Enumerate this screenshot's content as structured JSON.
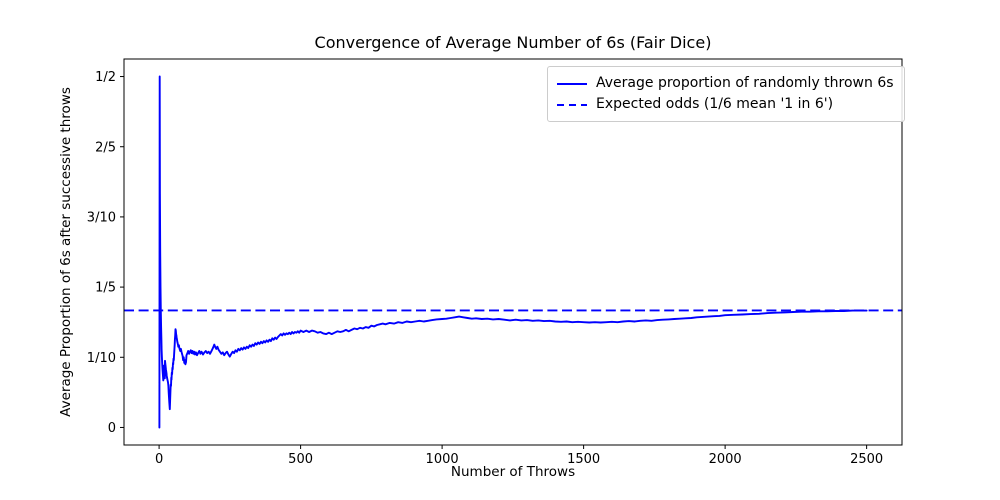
{
  "figure": {
    "background": "#ffffff"
  },
  "chart_data": {
    "type": "line",
    "title": "Convergence of Average Number of 6s (Fair Dice)",
    "xlabel": "Number of Throws",
    "ylabel": "Average Proportion of 6s after successive throws",
    "xlim": [
      -124,
      2625
    ],
    "ylim": [
      -0.025,
      0.525
    ],
    "grid": false,
    "series_color": "#0000ff",
    "axis_color": "#000000",
    "expected_value": 0.166667,
    "xticks": {
      "values": [
        0,
        500,
        1000,
        1500,
        2000,
        2500
      ],
      "labels": [
        "0",
        "500",
        "1000",
        "1500",
        "2000",
        "2500"
      ]
    },
    "yticks": {
      "values": [
        0,
        0.1,
        0.2,
        0.3,
        0.4,
        0.5
      ],
      "labels": [
        "0",
        "1/10",
        "1/5",
        "3/10",
        "2/5",
        "1/2"
      ]
    },
    "legend": {
      "position": "upper right",
      "entries": [
        {
          "label": "Average proportion of randomly thrown 6s",
          "style": "solid"
        },
        {
          "label": "Expected odds (1/6 mean '1 in 6')",
          "style": "dashed"
        }
      ]
    },
    "series": [
      {
        "name": "Average proportion of randomly thrown 6s",
        "points": [
          [
            1,
            0
          ],
          [
            2,
            0.5
          ],
          [
            3,
            0.333
          ],
          [
            4,
            0.25
          ],
          [
            5,
            0.2
          ],
          [
            6,
            0.167
          ],
          [
            7,
            0.143
          ],
          [
            8,
            0.125
          ],
          [
            9,
            0.111
          ],
          [
            10,
            0.1
          ],
          [
            11,
            0.091
          ],
          [
            12,
            0.083
          ],
          [
            13,
            0.077
          ],
          [
            14,
            0.071
          ],
          [
            15,
            0.067
          ],
          [
            16,
            0.088
          ],
          [
            17,
            0.083
          ],
          [
            18,
            0.078
          ],
          [
            19,
            0.074
          ],
          [
            20,
            0.07
          ],
          [
            21,
            0.095
          ],
          [
            22,
            0.091
          ],
          [
            23,
            0.087
          ],
          [
            24,
            0.083
          ],
          [
            25,
            0.08
          ],
          [
            26,
            0.077
          ],
          [
            27,
            0.074
          ],
          [
            28,
            0.071
          ],
          [
            29,
            0.069
          ],
          [
            30,
            0.067
          ],
          [
            31,
            0.065
          ],
          [
            32,
            0.063
          ],
          [
            33,
            0.059
          ],
          [
            34,
            0.05
          ],
          [
            35,
            0.043
          ],
          [
            36,
            0.036
          ],
          [
            37,
            0.03
          ],
          [
            38,
            0.026
          ],
          [
            39,
            0.038
          ],
          [
            40,
            0.05
          ],
          [
            41,
            0.061
          ],
          [
            42,
            0.059
          ],
          [
            43,
            0.071
          ],
          [
            44,
            0.068
          ],
          [
            45,
            0.078
          ],
          [
            46,
            0.076
          ],
          [
            47,
            0.085
          ],
          [
            48,
            0.083
          ],
          [
            49,
            0.092
          ],
          [
            50,
            0.09
          ],
          [
            51,
            0.098
          ],
          [
            52,
            0.096
          ],
          [
            53,
            0.104
          ],
          [
            54,
            0.111
          ],
          [
            55,
            0.118
          ],
          [
            56,
            0.125
          ],
          [
            57,
            0.131
          ],
          [
            58,
            0.14
          ],
          [
            59,
            0.138
          ],
          [
            60,
            0.133
          ],
          [
            61,
            0.131
          ],
          [
            62,
            0.128
          ],
          [
            63,
            0.126
          ],
          [
            64,
            0.123
          ],
          [
            65,
            0.121
          ],
          [
            66,
            0.119
          ],
          [
            67,
            0.117
          ],
          [
            68,
            0.115
          ],
          [
            70,
            0.117
          ],
          [
            71,
            0.114
          ],
          [
            73,
            0.111
          ],
          [
            75,
            0.109
          ],
          [
            77,
            0.112
          ],
          [
            79,
            0.108
          ],
          [
            81,
            0.105
          ],
          [
            83,
            0.102
          ],
          [
            85,
            0.096
          ],
          [
            87,
            0.1
          ],
          [
            89,
            0.092
          ],
          [
            91,
            0.096
          ],
          [
            93,
            0.09
          ],
          [
            95,
            0.093
          ],
          [
            97,
            0.103
          ],
          [
            100,
            0.106
          ],
          [
            103,
            0.109
          ],
          [
            106,
            0.105
          ],
          [
            109,
            0.108
          ],
          [
            112,
            0.11
          ],
          [
            115,
            0.106
          ],
          [
            118,
            0.109
          ],
          [
            121,
            0.105
          ],
          [
            124,
            0.108
          ],
          [
            127,
            0.104
          ],
          [
            130,
            0.107
          ],
          [
            134,
            0.103
          ],
          [
            138,
            0.106
          ],
          [
            142,
            0.109
          ],
          [
            146,
            0.105
          ],
          [
            150,
            0.108
          ],
          [
            155,
            0.104
          ],
          [
            160,
            0.107
          ],
          [
            165,
            0.109
          ],
          [
            170,
            0.106
          ],
          [
            175,
            0.108
          ],
          [
            180,
            0.105
          ],
          [
            185,
            0.109
          ],
          [
            190,
            0.113
          ],
          [
            195,
            0.118
          ],
          [
            198,
            0.115
          ],
          [
            202,
            0.112
          ],
          [
            206,
            0.115
          ],
          [
            210,
            0.111
          ],
          [
            215,
            0.108
          ],
          [
            220,
            0.105
          ],
          [
            225,
            0.107
          ],
          [
            230,
            0.103
          ],
          [
            235,
            0.106
          ],
          [
            240,
            0.108
          ],
          [
            245,
            0.104
          ],
          [
            250,
            0.101
          ],
          [
            255,
            0.105
          ],
          [
            260,
            0.108
          ],
          [
            265,
            0.106
          ],
          [
            270,
            0.11
          ],
          [
            275,
            0.108
          ],
          [
            280,
            0.112
          ],
          [
            285,
            0.11
          ],
          [
            290,
            0.113
          ],
          [
            295,
            0.111
          ],
          [
            300,
            0.114
          ],
          [
            305,
            0.112
          ],
          [
            310,
            0.115
          ],
          [
            315,
            0.113
          ],
          [
            320,
            0.117
          ],
          [
            325,
            0.115
          ],
          [
            330,
            0.118
          ],
          [
            335,
            0.116
          ],
          [
            340,
            0.12
          ],
          [
            345,
            0.118
          ],
          [
            350,
            0.121
          ],
          [
            355,
            0.119
          ],
          [
            360,
            0.122
          ],
          [
            365,
            0.12
          ],
          [
            370,
            0.123
          ],
          [
            375,
            0.121
          ],
          [
            380,
            0.124
          ],
          [
            385,
            0.122
          ],
          [
            390,
            0.125
          ],
          [
            395,
            0.123
          ],
          [
            400,
            0.127
          ],
          [
            405,
            0.125
          ],
          [
            410,
            0.128
          ],
          [
            415,
            0.126
          ],
          [
            420,
            0.129
          ],
          [
            425,
            0.131
          ],
          [
            430,
            0.133
          ],
          [
            435,
            0.131
          ],
          [
            440,
            0.134
          ],
          [
            445,
            0.132
          ],
          [
            450,
            0.134
          ],
          [
            455,
            0.133
          ],
          [
            460,
            0.135
          ],
          [
            465,
            0.133
          ],
          [
            470,
            0.136
          ],
          [
            475,
            0.134
          ],
          [
            480,
            0.136
          ],
          [
            485,
            0.135
          ],
          [
            490,
            0.137
          ],
          [
            495,
            0.135
          ],
          [
            500,
            0.138
          ],
          [
            510,
            0.136
          ],
          [
            520,
            0.138
          ],
          [
            530,
            0.136
          ],
          [
            540,
            0.138
          ],
          [
            550,
            0.137
          ],
          [
            560,
            0.135
          ],
          [
            570,
            0.136
          ],
          [
            580,
            0.134
          ],
          [
            590,
            0.133
          ],
          [
            600,
            0.135
          ],
          [
            610,
            0.133
          ],
          [
            620,
            0.135
          ],
          [
            630,
            0.137
          ],
          [
            640,
            0.136
          ],
          [
            650,
            0.137
          ],
          [
            660,
            0.139
          ],
          [
            670,
            0.137
          ],
          [
            680,
            0.139
          ],
          [
            690,
            0.141
          ],
          [
            700,
            0.14
          ],
          [
            710,
            0.142
          ],
          [
            720,
            0.141
          ],
          [
            730,
            0.143
          ],
          [
            740,
            0.142
          ],
          [
            750,
            0.145
          ],
          [
            760,
            0.144
          ],
          [
            770,
            0.146
          ],
          [
            780,
            0.147
          ],
          [
            790,
            0.148
          ],
          [
            800,
            0.147
          ],
          [
            815,
            0.149
          ],
          [
            830,
            0.148
          ],
          [
            845,
            0.15
          ],
          [
            860,
            0.149
          ],
          [
            875,
            0.151
          ],
          [
            890,
            0.15
          ],
          [
            905,
            0.151
          ],
          [
            920,
            0.152
          ],
          [
            935,
            0.151
          ],
          [
            950,
            0.152
          ],
          [
            965,
            0.153
          ],
          [
            980,
            0.154
          ],
          [
            1000,
            0.1545
          ],
          [
            1015,
            0.155
          ],
          [
            1030,
            0.156
          ],
          [
            1045,
            0.157
          ],
          [
            1060,
            0.158
          ],
          [
            1075,
            0.157
          ],
          [
            1090,
            0.156
          ],
          [
            1105,
            0.155
          ],
          [
            1120,
            0.1555
          ],
          [
            1140,
            0.1545
          ],
          [
            1160,
            0.155
          ],
          [
            1180,
            0.154
          ],
          [
            1200,
            0.1545
          ],
          [
            1220,
            0.1535
          ],
          [
            1240,
            0.1525
          ],
          [
            1260,
            0.1535
          ],
          [
            1280,
            0.1525
          ],
          [
            1300,
            0.153
          ],
          [
            1320,
            0.152
          ],
          [
            1340,
            0.1525
          ],
          [
            1360,
            0.1515
          ],
          [
            1380,
            0.152
          ],
          [
            1400,
            0.151
          ],
          [
            1420,
            0.1505
          ],
          [
            1440,
            0.151
          ],
          [
            1460,
            0.15
          ],
          [
            1480,
            0.1505
          ],
          [
            1500,
            0.15
          ],
          [
            1520,
            0.1495
          ],
          [
            1540,
            0.15
          ],
          [
            1560,
            0.1495
          ],
          [
            1580,
            0.15
          ],
          [
            1600,
            0.1505
          ],
          [
            1620,
            0.15
          ],
          [
            1640,
            0.151
          ],
          [
            1660,
            0.1515
          ],
          [
            1680,
            0.151
          ],
          [
            1700,
            0.152
          ],
          [
            1720,
            0.1525
          ],
          [
            1740,
            0.152
          ],
          [
            1760,
            0.153
          ],
          [
            1780,
            0.1535
          ],
          [
            1800,
            0.154
          ],
          [
            1820,
            0.1545
          ],
          [
            1840,
            0.155
          ],
          [
            1860,
            0.1555
          ],
          [
            1880,
            0.156
          ],
          [
            1900,
            0.157
          ],
          [
            1920,
            0.1575
          ],
          [
            1940,
            0.158
          ],
          [
            1960,
            0.1585
          ],
          [
            1980,
            0.159
          ],
          [
            2000,
            0.16
          ],
          [
            2030,
            0.1605
          ],
          [
            2060,
            0.161
          ],
          [
            2090,
            0.1615
          ],
          [
            2120,
            0.162
          ],
          [
            2150,
            0.163
          ],
          [
            2180,
            0.1635
          ],
          [
            2210,
            0.164
          ],
          [
            2240,
            0.1645
          ],
          [
            2270,
            0.165
          ],
          [
            2300,
            0.165
          ],
          [
            2330,
            0.1655
          ],
          [
            2360,
            0.1655
          ],
          [
            2390,
            0.166
          ],
          [
            2420,
            0.166
          ],
          [
            2450,
            0.1665
          ],
          [
            2475,
            0.1665
          ],
          [
            2500,
            0.1665
          ]
        ]
      }
    ]
  }
}
